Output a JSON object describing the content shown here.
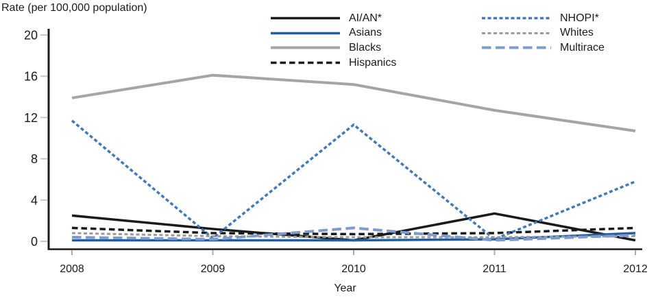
{
  "chart_data": {
    "type": "line",
    "title": "",
    "xlabel": "Year",
    "ylabel": "Rate (per 100,000 population)",
    "x": [
      "2008",
      "2009",
      "2010",
      "2011",
      "2012"
    ],
    "ylim": [
      0,
      20
    ],
    "yticks": [
      0,
      4,
      8,
      12,
      16,
      20
    ],
    "grid": false,
    "legend_position": "top",
    "series": [
      {
        "name": "AI/AN*",
        "color": "#1a1a1a",
        "dash": "solid",
        "width": 3.5,
        "values": [
          2.5,
          1.2,
          0.1,
          2.7,
          0.1
        ]
      },
      {
        "name": "Asians",
        "color": "#1f5fa0",
        "dash": "solid",
        "width": 3.5,
        "values": [
          0.1,
          0.1,
          0.1,
          0.2,
          0.8
        ]
      },
      {
        "name": "Blacks",
        "color": "#a5a5a5",
        "dash": "solid",
        "width": 4,
        "values": [
          13.9,
          16.1,
          15.2,
          12.7,
          10.7
        ]
      },
      {
        "name": "Hispanics",
        "color": "#1a1a1a",
        "dash": "dashed",
        "width": 3.5,
        "values": [
          1.3,
          0.8,
          0.7,
          0.8,
          1.3
        ]
      },
      {
        "name": "NHOPI*",
        "color": "#4378bc",
        "dash": "shortdash",
        "width": 3.5,
        "values": [
          11.7,
          0.3,
          11.3,
          0.2,
          5.8
        ]
      },
      {
        "name": "Whites",
        "color": "#9b9b9b",
        "dash": "shortdash",
        "width": 3,
        "values": [
          0.8,
          0.5,
          0.4,
          0.4,
          0.5
        ]
      },
      {
        "name": "Multirace",
        "color": "#7f9bcd",
        "dash": "longdash",
        "width": 4,
        "values": [
          0.4,
          0.2,
          1.3,
          0.1,
          0.6
        ]
      }
    ],
    "legend_columns": [
      [
        "AI/AN*",
        "Asians",
        "Blacks",
        "Hispanics"
      ],
      [
        "NHOPI*",
        "Whites",
        "Multirace"
      ]
    ]
  },
  "colors": {
    "axis": "#1a1a1a",
    "y_tick": "#c6c6c6",
    "x_tick": "#adadad",
    "background": "#ffffff"
  }
}
